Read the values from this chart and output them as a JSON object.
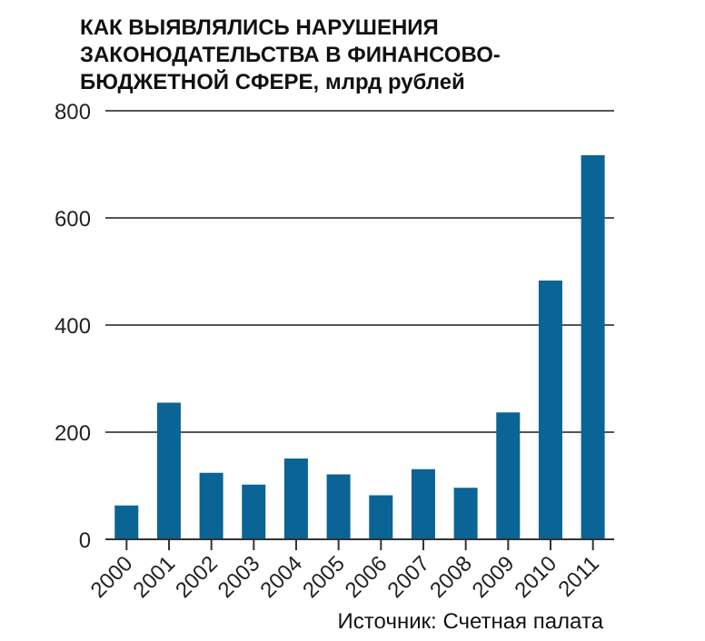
{
  "chart_data": {
    "type": "bar",
    "title": "КАК ВЫЯВЛЯЛИСЬ НАРУШЕНИЯ ЗАКОНОДАТЕЛЬСТВА В ФИНАНСОВО-БЮДЖЕТНОЙ СФЕРЕ, млрд рублей",
    "categories": [
      "2000",
      "2001",
      "2002",
      "2003",
      "2004",
      "2005",
      "2006",
      "2007",
      "2008",
      "2009",
      "2010",
      "2011"
    ],
    "values": [
      63,
      255,
      124,
      102,
      151,
      121,
      82,
      131,
      96,
      237,
      483,
      717
    ],
    "color": "#0a6496",
    "ylim": [
      0,
      800
    ],
    "yticks": [
      0,
      200,
      400,
      600,
      800
    ],
    "grid": "y",
    "annotations": [
      "Источник: Счетная палата"
    ]
  }
}
